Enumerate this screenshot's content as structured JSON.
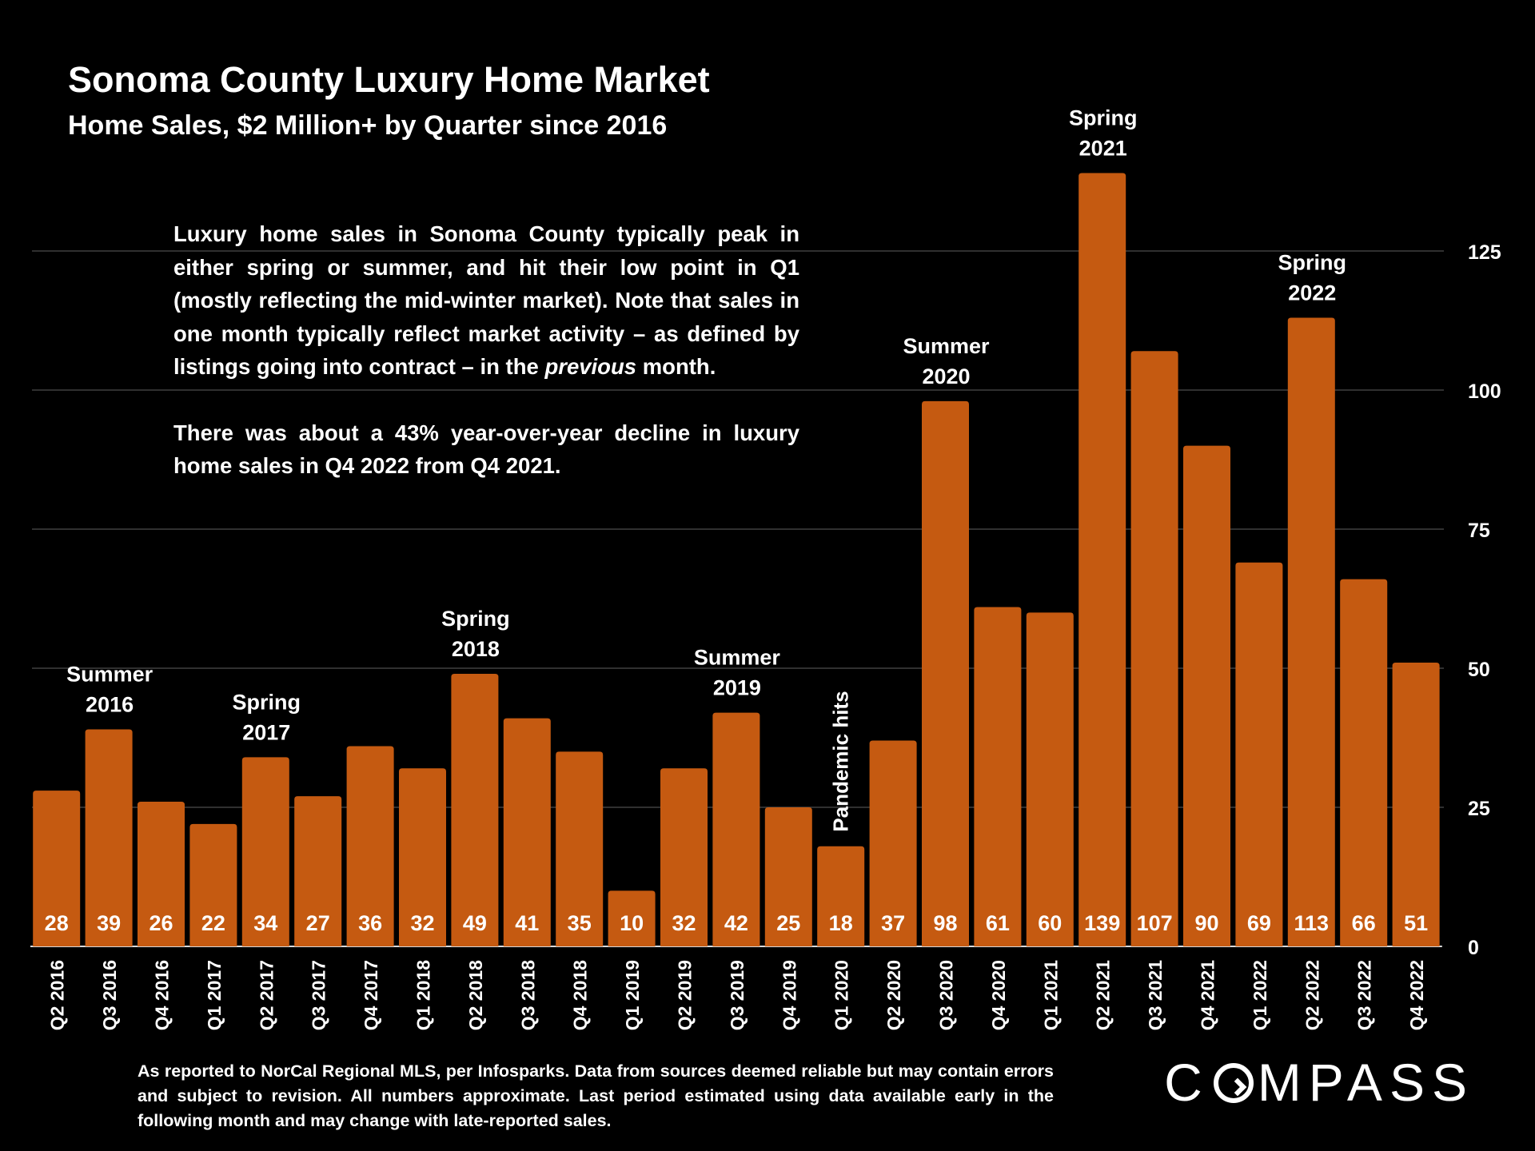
{
  "chart_data": {
    "type": "bar",
    "title": "Sonoma County Luxury Home Market",
    "subtitle": "Home Sales, $2 Million+ by Quarter since 2016",
    "categories": [
      "Q2 2016",
      "Q3 2016",
      "Q4 2016",
      "Q1 2017",
      "Q2 2017",
      "Q3 2017",
      "Q4 2017",
      "Q1 2018",
      "Q2 2018",
      "Q3 2018",
      "Q4 2018",
      "Q1 2019",
      "Q2 2019",
      "Q3 2019",
      "Q4 2019",
      "Q1 2020",
      "Q2 2020",
      "Q3 2020",
      "Q4 2020",
      "Q1 2021",
      "Q2 2021",
      "Q3 2021",
      "Q4 2021",
      "Q1 2022",
      "Q2 2022",
      "Q3 2022",
      "Q4 2022"
    ],
    "series": [
      {
        "values": [
          28,
          39,
          26,
          22,
          34,
          27,
          36,
          32,
          49,
          41,
          35,
          10,
          32,
          42,
          25,
          18,
          37,
          98,
          61,
          60,
          139,
          107,
          90,
          69,
          113,
          66,
          51
        ]
      }
    ],
    "data_labels": [
      "28",
      "39",
      "26",
      "22",
      "34",
      "27",
      "36",
      "32",
      "49",
      "41",
      "35",
      "10",
      "32",
      "42",
      "25",
      "18",
      "37",
      "98",
      "61",
      "60",
      "139",
      "107",
      "90",
      "69",
      "113",
      "66",
      "51"
    ],
    "ylim": [
      0,
      142
    ],
    "yticks": [
      "0",
      "25",
      "50",
      "75",
      "100",
      "125"
    ],
    "ytick_values": [
      0,
      25,
      50,
      75,
      100,
      125
    ],
    "y_axis_side": "right",
    "grid": true,
    "bar_color": "#c55a11",
    "annotations": [
      {
        "category_index": 1,
        "lines": [
          "Summer",
          "2016"
        ]
      },
      {
        "category_index": 4,
        "lines": [
          "Spring",
          "2017"
        ]
      },
      {
        "category_index": 8,
        "lines": [
          "Spring",
          "2018"
        ]
      },
      {
        "category_index": 13,
        "lines": [
          "Summer",
          "2019"
        ]
      },
      {
        "category_index": 15,
        "text": "Pandemic hits",
        "rotated": true
      },
      {
        "category_index": 17,
        "lines": [
          "Summer",
          "2020"
        ]
      },
      {
        "category_index": 20,
        "lines": [
          "Spring",
          "2021"
        ]
      },
      {
        "category_index": 24,
        "lines": [
          "Spring",
          "2022"
        ]
      }
    ]
  },
  "commentary": {
    "para1_a": "Luxury home sales in Sonoma County typically peak in either spring or summer, and hit their low point in Q1 (mostly reflecting the mid-winter market). Note that sales in one month typically reflect market activity – as defined by listings going into contract – in the ",
    "para1_em": "previous",
    "para1_b": " month.",
    "para2": "There was about a 43% year-over-year decline in luxury home sales in Q4 2022 from Q4 2021."
  },
  "footnote": "As reported to NorCal Regional MLS, per Infosparks. Data from sources deemed reliable but may contain errors and subject to revision. All numbers approximate. Last period estimated using data available early in the following month and may change with late-reported sales.",
  "logo": {
    "before": "C",
    "after": "MPASS"
  },
  "colors": {
    "background": "#000000",
    "text": "#ffffff",
    "gridline": "#404040"
  }
}
